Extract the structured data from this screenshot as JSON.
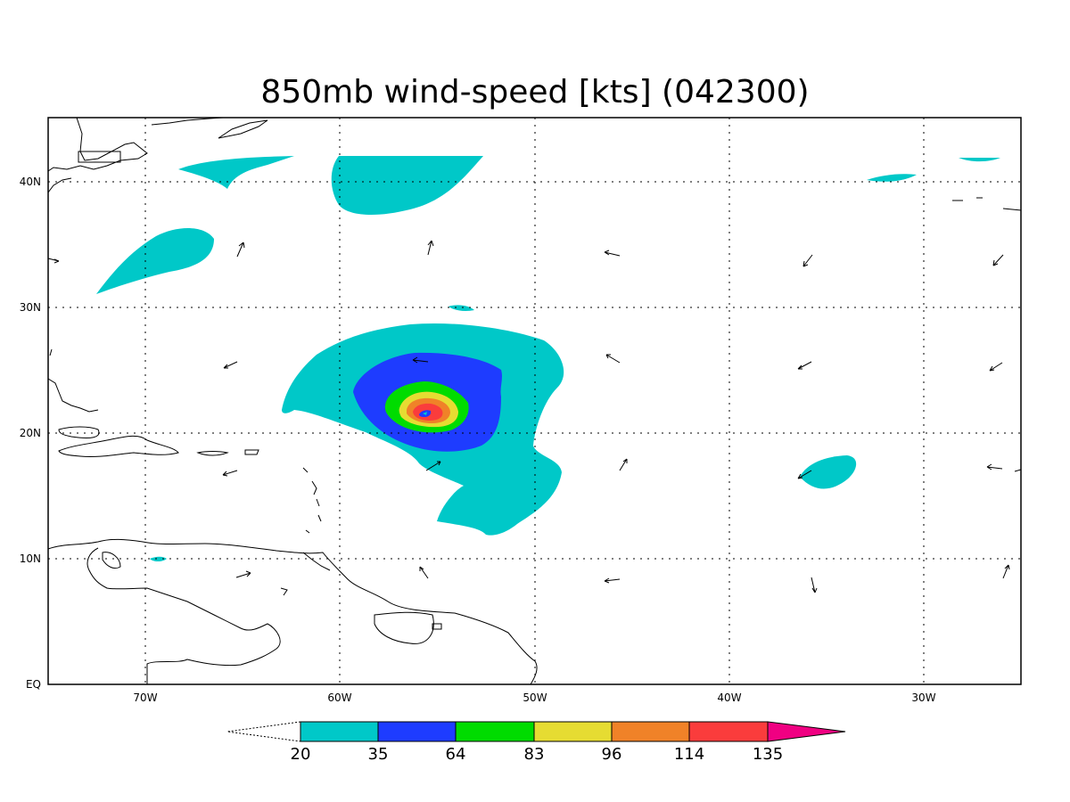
{
  "title": "850mb wind-speed [kts] (042300)",
  "map": {
    "lon_range": [
      -75,
      -25
    ],
    "lat_range": [
      0,
      45
    ],
    "lon_ticks": [
      "70W",
      "60W",
      "50W",
      "40W",
      "30W"
    ],
    "lat_ticks": [
      "EQ",
      "10N",
      "20N",
      "30N",
      "40N"
    ],
    "grid": true
  },
  "colorbar": {
    "labels": [
      "20",
      "35",
      "64",
      "83",
      "96",
      "114",
      "135"
    ],
    "colors": [
      "#00c8c8",
      "#1e3cff",
      "#00dc00",
      "#e6dc32",
      "#f08228",
      "#fa3c3c",
      "#f00082"
    ]
  },
  "wind_field": {
    "storm_center_approx": "21.5N 55.5W",
    "max_band": "135+"
  }
}
